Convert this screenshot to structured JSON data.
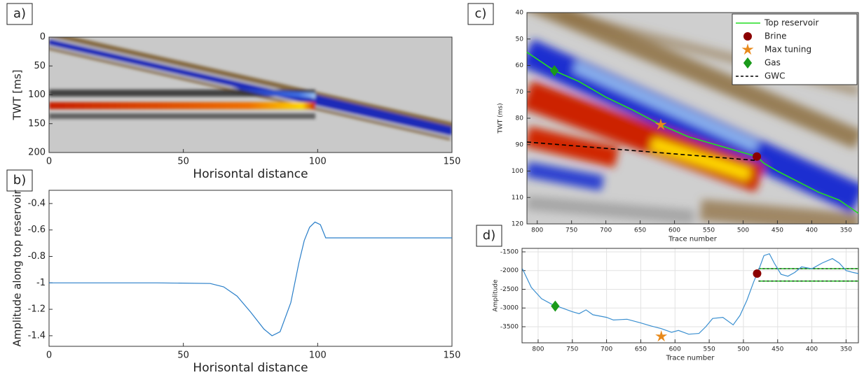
{
  "chart_data": [
    {
      "type": "seismic",
      "panel_label": "a)",
      "xlabel": "Horisontal distance",
      "ylabel": "TWT [ms]",
      "xlim": [
        0,
        150
      ],
      "ylim": [
        200,
        0
      ],
      "xticks": [
        0,
        50,
        100,
        150
      ],
      "yticks": [
        0,
        50,
        100,
        150,
        200
      ]
    },
    {
      "type": "line",
      "panel_label": "b)",
      "xlabel": "Horisontal distance",
      "ylabel": "Amplitude along top reservoir",
      "xlim": [
        0,
        150
      ],
      "ylim": [
        -1.48,
        -0.3
      ],
      "xticks": [
        0,
        50,
        100,
        150
      ],
      "yticks": [
        -1.4,
        -1.2,
        -1,
        -0.8,
        -0.6,
        -0.4
      ],
      "series": [
        {
          "color": "#2a7fc9",
          "x": [
            0,
            20,
            40,
            60,
            65,
            70,
            75,
            80,
            83,
            86,
            90,
            93,
            95,
            97,
            99,
            101,
            103,
            105,
            120,
            150
          ],
          "values": [
            -1,
            -1,
            -1,
            -1.005,
            -1.03,
            -1.1,
            -1.22,
            -1.35,
            -1.4,
            -1.37,
            -1.15,
            -0.85,
            -0.68,
            -0.58,
            -0.54,
            -0.56,
            -0.66,
            -0.66,
            -0.66,
            -0.66
          ]
        }
      ]
    },
    {
      "type": "seismic",
      "panel_label": "c)",
      "xlabel": "Trace number",
      "ylabel": "TWT (ms)",
      "xlim": [
        815,
        332
      ],
      "ylim": [
        120,
        40
      ],
      "xticks": [
        800,
        750,
        700,
        650,
        600,
        550,
        500,
        450,
        400,
        350
      ],
      "yticks": [
        40,
        50,
        60,
        70,
        80,
        90,
        100,
        110,
        120
      ],
      "legend": "upper right",
      "series": [
        {
          "name": "Top reservoir",
          "color": "#22dd22",
          "x": [
            815,
            775,
            740,
            700,
            660,
            620,
            580,
            540,
            500,
            480,
            470,
            450,
            420,
            390,
            360,
            332
          ],
          "values": [
            55,
            62,
            66,
            72,
            77,
            82.5,
            87,
            90,
            93,
            94.5,
            97,
            100,
            104,
            108,
            111,
            116
          ]
        },
        {
          "name": "Brine",
          "color": "#8b0000",
          "marker": "circle",
          "x": [
            480
          ],
          "values": [
            94.5
          ]
        },
        {
          "name": "Max tuning",
          "color": "#e8891a",
          "marker": "star",
          "x": [
            620
          ],
          "values": [
            82.5
          ]
        },
        {
          "name": "Gas",
          "color": "#1a9a1a",
          "marker": "diamond",
          "x": [
            775
          ],
          "values": [
            62
          ]
        },
        {
          "name": "GWC",
          "color": "#000000",
          "style": "dashed",
          "x": [
            815,
            480
          ],
          "values": [
            89,
            96
          ]
        }
      ]
    },
    {
      "type": "line",
      "panel_label": "d)",
      "xlabel": "Trace number",
      "ylabel": "Amplitude",
      "xlim": [
        823.5,
        332
      ],
      "ylim": [
        -3930,
        -1407
      ],
      "xticks": [
        800,
        750,
        700,
        650,
        600,
        550,
        500,
        450,
        400,
        350
      ],
      "yticks": [
        -3500,
        -3000,
        -2500,
        -2000,
        -1500
      ],
      "grid": true,
      "series": [
        {
          "color": "#3a8fd0",
          "x": [
            823,
            810,
            795,
            780,
            765,
            750,
            740,
            730,
            720,
            700,
            690,
            670,
            650,
            635,
            620,
            605,
            595,
            580,
            565,
            555,
            545,
            530,
            515,
            505,
            495,
            485,
            478,
            470,
            462,
            455,
            445,
            435,
            425,
            415,
            400,
            385,
            370,
            360,
            350,
            340,
            332
          ],
          "values": [
            -1950,
            -2450,
            -2750,
            -2900,
            -3000,
            -3100,
            -3150,
            -3050,
            -3180,
            -3250,
            -3320,
            -3300,
            -3400,
            -3480,
            -3550,
            -3650,
            -3600,
            -3700,
            -3680,
            -3500,
            -3280,
            -3250,
            -3450,
            -3200,
            -2800,
            -2300,
            -2000,
            -1600,
            -1550,
            -1800,
            -2100,
            -2150,
            -2050,
            -1900,
            -1950,
            -1800,
            -1680,
            -1800,
            -2000,
            -2050,
            -2080
          ]
        },
        {
          "color": "#8b0000",
          "marker": "circle",
          "x": [
            480
          ],
          "values": [
            -2080
          ]
        },
        {
          "color": "#e8891a",
          "marker": "star",
          "x": [
            620
          ],
          "values": [
            -3760
          ]
        },
        {
          "color": "#1a9a1a",
          "marker": "diamond",
          "x": [
            775
          ],
          "values": [
            -2950
          ]
        }
      ],
      "hlines": {
        "color": "#22cc22",
        "x": [
          478,
          332
        ],
        "values": [
          -1950,
          -2280
        ]
      }
    }
  ]
}
